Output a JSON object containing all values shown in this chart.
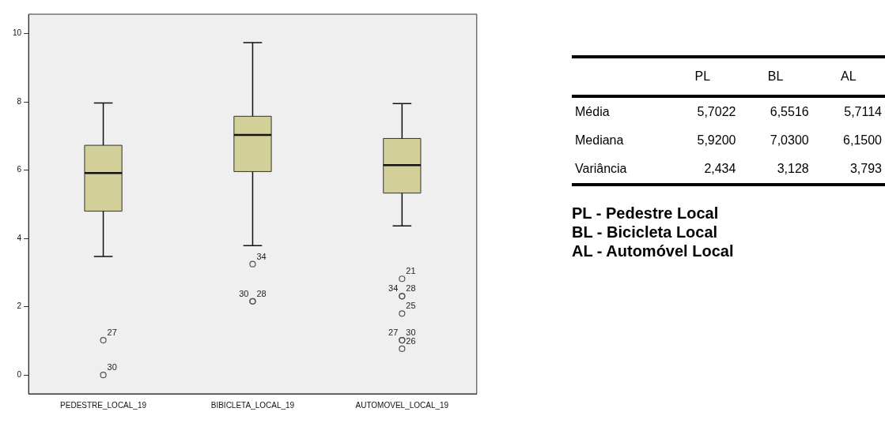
{
  "chart_data": {
    "type": "box",
    "categories": [
      "PEDESTRE_LOCAL_19",
      "BIBICLETA_LOCAL_19",
      "AUTOMOVEL_LOCAL_19"
    ],
    "color": "#d3cf98",
    "ylim": [
      -0.55,
      10.57
    ],
    "yticks": [
      0,
      2,
      4,
      6,
      8,
      10
    ],
    "grid": false,
    "legend": false,
    "boxes": [
      {
        "low": 3.47,
        "q1": 4.8,
        "median": 5.92,
        "q3": 6.73,
        "high": 7.97
      },
      {
        "low": 3.79,
        "q1": 5.96,
        "median": 7.03,
        "q3": 7.58,
        "high": 9.74
      },
      {
        "low": 4.37,
        "q1": 5.33,
        "median": 6.15,
        "q3": 6.93,
        "high": 7.95
      }
    ],
    "series": [
      {
        "type": "scatter",
        "color": "#555555",
        "marker": "circle",
        "x": [
          "PEDESTRE_LOCAL_19",
          "PEDESTRE_LOCAL_19",
          "BIBICLETA_LOCAL_19",
          "BIBICLETA_LOCAL_19",
          "BIBICLETA_LOCAL_19",
          "AUTOMOVEL_LOCAL_19",
          "AUTOMOVEL_LOCAL_19",
          "AUTOMOVEL_LOCAL_19",
          "AUTOMOVEL_LOCAL_19",
          "AUTOMOVEL_LOCAL_19",
          "AUTOMOVEL_LOCAL_19",
          "AUTOMOVEL_LOCAL_19"
        ],
        "values": [
          1.02,
          0,
          3.25,
          2.16,
          2.16,
          2.82,
          2.31,
          2.31,
          1.8,
          1.02,
          1.02,
          0.77
        ]
      }
    ],
    "annotations": [
      {
        "text": "27",
        "x": "PEDESTRE_LOCAL_19",
        "y": 1.02
      },
      {
        "text": "30",
        "x": "PEDESTRE_LOCAL_19",
        "y": 0
      },
      {
        "text": "34",
        "x": "BIBICLETA_LOCAL_19",
        "y": 3.25
      },
      {
        "text": "28",
        "x": "BIBICLETA_LOCAL_19",
        "y": 2.16
      },
      {
        "text": "30",
        "x": "BIBICLETA_LOCAL_19",
        "y": 2.16
      },
      {
        "text": "21",
        "x": "AUTOMOVEL_LOCAL_19",
        "y": 2.82
      },
      {
        "text": "28",
        "x": "AUTOMOVEL_LOCAL_19",
        "y": 2.31
      },
      {
        "text": "34",
        "x": "AUTOMOVEL_LOCAL_19",
        "y": 2.31
      },
      {
        "text": "25",
        "x": "AUTOMOVEL_LOCAL_19",
        "y": 1.8
      },
      {
        "text": "30",
        "x": "AUTOMOVEL_LOCAL_19",
        "y": 1.02
      },
      {
        "text": "27",
        "x": "AUTOMOVEL_LOCAL_19",
        "y": 1.02
      },
      {
        "text": "26",
        "x": "AUTOMOVEL_LOCAL_19",
        "y": 0.77
      },
      "PL",
      "BL",
      "AL",
      "Média",
      "5,7022",
      "6,5516",
      "5,7114",
      "Mediana",
      "5,9200",
      "7,0300",
      "6,1500",
      "Variância",
      "2,434",
      "3,128",
      "3,793",
      "PL - Pedestre Local",
      "BL - Bicicleta Local",
      "AL - Automóvel Local"
    ]
  }
}
